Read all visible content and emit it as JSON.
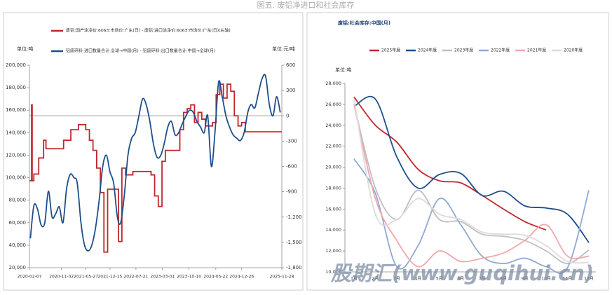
{
  "title": "图五. 废铝净进口和社会库存",
  "watermark": "股期汇(www.guqihui.cn)",
  "chart_data": [
    {
      "type": "line",
      "y_label": "单位:吨",
      "y2_label": "单位:元/吨",
      "xlim": [
        "2020-02-07",
        "2025-11-28"
      ],
      "xticks": [
        "2020-02-07",
        "2020-11-02",
        "2021-05-27",
        "2021-12-15",
        "2022-07-21",
        "2023-03-01",
        "2023-10-10",
        "2024-05-22",
        "2024-12-26",
        "2025-11-28"
      ],
      "ylim": [
        20000,
        200000
      ],
      "yticks": [
        {
          "value": 20000,
          "label": "20,000"
        },
        {
          "value": 40000,
          "label": "40,000"
        },
        {
          "value": 60000,
          "label": "60,000"
        },
        {
          "value": 80000,
          "label": "80,000"
        },
        {
          "value": 100000,
          "label": "100,000"
        },
        {
          "value": 120000,
          "label": "120,000"
        },
        {
          "value": 140000,
          "label": "140,000"
        },
        {
          "value": 160000,
          "label": "160,000"
        },
        {
          "value": 180000,
          "label": "180,000"
        },
        {
          "value": 200000,
          "label": "200,000"
        }
      ],
      "y2lim": [
        -1800,
        600
      ],
      "y2ticks": [
        600,
        300,
        0,
        -300,
        -600,
        -900,
        {
          "value": -1200,
          "label": "-1,200"
        },
        {
          "value": -1500,
          "label": "-1,500"
        },
        {
          "value": -1800,
          "label": "-1,800"
        }
      ],
      "y2_zero_line": true,
      "series": [
        {
          "name": "废铝:国产涂净价:6063:市场价:广东(日) - 废铝:进口涂净价:6063:市场价:广东(日)(右轴)",
          "color": "#c0272d",
          "axis": "y2",
          "step": true,
          "x": [
            "2020-02-07",
            "2020-02-25",
            "2020-03-01",
            "2020-03-15",
            "2020-04-25",
            "2020-06-05",
            "2020-06-25",
            "2020-11-20",
            "2021-01-20",
            "2021-03-25",
            "2021-05-25",
            "2021-06-25",
            "2021-07-25",
            "2021-08-25",
            "2021-09-25",
            "2021-10-25",
            "2021-11-25",
            "2022-02-25",
            "2022-03-25",
            "2022-04-25",
            "2022-06-25",
            "2022-11-25",
            "2022-12-25",
            "2023-01-25",
            "2023-02-25",
            "2023-03-25",
            "2023-07-25",
            "2023-08-25",
            "2023-09-25",
            "2023-10-25",
            "2023-11-25",
            "2023-12-25",
            "2024-01-25",
            "2024-02-25",
            "2024-04-25",
            "2024-05-25",
            "2024-06-25",
            "2024-07-25",
            "2024-08-25",
            "2024-09-25",
            "2024-10-25",
            "2024-11-25",
            "2024-12-25",
            "2025-01-25",
            "2025-11-28"
          ],
          "values": [
            -770,
            130,
            -770,
            -690,
            -500,
            -290,
            -390,
            -290,
            -165,
            -105,
            -165,
            -290,
            -410,
            -620,
            -910,
            -1615,
            -870,
            -1490,
            -620,
            -700,
            -660,
            -700,
            -950,
            -1075,
            -540,
            -410,
            -165,
            40,
            85,
            130,
            -80,
            40,
            -40,
            -120,
            -80,
            250,
            375,
            210,
            375,
            290,
            0,
            -120,
            -80,
            -190,
            -190
          ]
        },
        {
          "name": "铝废碎料:进口数量合计:全球→中国(月) - 铝废碎料:出口数量合计:中国→全球(月)",
          "color": "#1f4e8c",
          "axis": "y",
          "x": [
            "2020-02",
            "2020-03",
            "2020-04",
            "2020-05",
            "2020-06",
            "2020-07",
            "2020-08",
            "2020-09",
            "2020-10",
            "2020-11",
            "2020-12",
            "2021-01",
            "2021-02",
            "2021-03",
            "2021-04",
            "2021-05",
            "2021-06",
            "2021-07",
            "2021-08",
            "2021-09",
            "2021-10",
            "2021-11",
            "2021-12",
            "2022-01",
            "2022-02",
            "2022-03",
            "2022-04",
            "2022-05",
            "2022-06",
            "2022-07",
            "2022-08",
            "2022-09",
            "2022-10",
            "2022-11",
            "2022-12",
            "2023-01",
            "2023-02",
            "2023-03",
            "2023-04",
            "2023-05",
            "2023-06",
            "2023-07",
            "2023-08",
            "2023-09",
            "2023-10",
            "2023-11",
            "2023-12",
            "2024-01",
            "2024-02",
            "2024-03",
            "2024-04",
            "2024-05",
            "2024-06",
            "2024-07",
            "2024-08",
            "2024-09",
            "2024-10",
            "2024-11",
            "2024-12",
            "2025-01",
            "2025-02",
            "2025-03",
            "2025-04",
            "2025-05",
            "2025-06",
            "2025-07",
            "2025-08",
            "2025-09",
            "2025-10",
            "2025-11"
          ],
          "values": [
            46000,
            75000,
            72000,
            58000,
            60000,
            88000,
            65000,
            68000,
            74000,
            60000,
            90000,
            103000,
            100000,
            95000,
            60000,
            40000,
            35000,
            40000,
            55000,
            80000,
            110000,
            120000,
            105000,
            95000,
            65000,
            60000,
            85000,
            120000,
            135000,
            140000,
            155000,
            170000,
            165000,
            150000,
            130000,
            118000,
            120000,
            130000,
            145000,
            150000,
            138000,
            140000,
            148000,
            155000,
            160000,
            158000,
            150000,
            145000,
            140000,
            155000,
            110000,
            140000,
            185000,
            172000,
            155000,
            145000,
            138000,
            135000,
            133000,
            140000,
            158000,
            165000,
            162000,
            175000,
            188000,
            190000,
            165000,
            155000,
            172000,
            158000
          ]
        }
      ]
    },
    {
      "type": "line",
      "title": "废铝:社会库存:中国(月)",
      "y_label": "单位:吨",
      "smooth": true,
      "categories": [
        "1月",
        "2月",
        "3月",
        "4月",
        "5月",
        "6月",
        "7月",
        "8月",
        "9月",
        "10月",
        "11月",
        "12月"
      ],
      "ylim": [
        10000,
        28000
      ],
      "yticks": [
        {
          "value": 10000,
          "label": "10,000"
        },
        {
          "value": 12000,
          "label": "12,000"
        },
        {
          "value": 14000,
          "label": "14,000"
        },
        {
          "value": 16000,
          "label": "16,000"
        },
        {
          "value": 18000,
          "label": "18,000"
        },
        {
          "value": 20000,
          "label": "20,000"
        },
        {
          "value": 22000,
          "label": "22,000"
        },
        {
          "value": 24000,
          "label": "24,000"
        },
        {
          "value": 26000,
          "label": "26,000"
        },
        {
          "value": 28000,
          "label": "28,000"
        }
      ],
      "series": [
        {
          "name": "2025年度",
          "color": "#c0272d",
          "values": [
            26700,
            24000,
            22400,
            19800,
            18700,
            18500,
            17300,
            16000,
            14800,
            14000,
            null,
            null
          ]
        },
        {
          "name": "2024年度",
          "color": "#1f4e8c",
          "values": [
            25800,
            26500,
            21000,
            18000,
            19300,
            19400,
            17300,
            17700,
            16300,
            16100,
            15500,
            12800
          ]
        },
        {
          "name": "2023年度",
          "color": "#bfbfbf",
          "values": [
            26000,
            18000,
            15000,
            17800,
            15000,
            14800,
            13600,
            13400,
            13000,
            12000,
            10800,
            12100
          ]
        },
        {
          "name": "2022年度",
          "color": "#8faad3",
          "values": [
            20800,
            17500,
            10500,
            12500,
            17000,
            14500,
            11500,
            10800,
            11300,
            10500,
            10400,
            17800
          ]
        },
        {
          "name": "2021年度",
          "color": "#f2a7ab",
          "values": [
            26000,
            17000,
            13000,
            10500,
            12000,
            11000,
            11300,
            11800,
            13000,
            14500,
            11500,
            11500
          ]
        },
        {
          "name": "2020年度",
          "color": "#dcdcdc",
          "values": [
            26500,
            15500,
            15000,
            17000,
            15500,
            15000,
            13800,
            13600,
            13500,
            12500,
            11000,
            10900
          ]
        }
      ]
    }
  ]
}
